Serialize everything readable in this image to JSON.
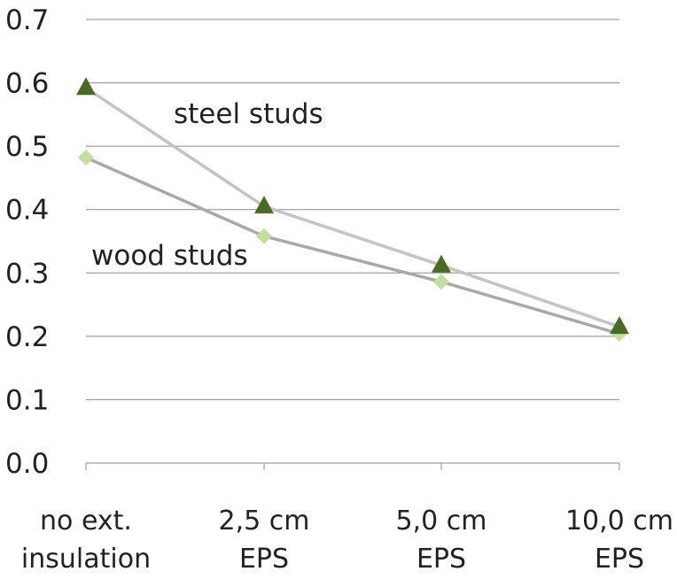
{
  "chart_data": {
    "type": "line",
    "categories": [
      [
        "no ext.",
        "insulation"
      ],
      [
        "2,5 cm",
        "EPS"
      ],
      [
        "5,0 cm",
        "EPS"
      ],
      [
        "10,0 cm",
        "EPS"
      ]
    ],
    "y_ticks": [
      "0.0",
      "0.1",
      "0.2",
      "0.3",
      "0.4",
      "0.5",
      "0.6",
      "0.7"
    ],
    "ylim": [
      0,
      0.7
    ],
    "grid": true,
    "legend": "none",
    "series": [
      {
        "name": "steel studs",
        "values": [
          0.592,
          0.405,
          0.312,
          0.215
        ],
        "line_color": "#c4c4c4",
        "marker": "triangle",
        "marker_color": "#4a6b25"
      },
      {
        "name": "wood studs",
        "values": [
          0.482,
          0.358,
          0.286,
          0.204
        ],
        "line_color": "#a9a9a9",
        "marker": "diamond",
        "marker_color": "#c2dfa0"
      }
    ],
    "annotations": [
      "steel studs",
      "wood studs"
    ],
    "colors": {
      "grid": "#8c8c8c",
      "axis": "#8c8c8c",
      "text": "#222222"
    }
  }
}
